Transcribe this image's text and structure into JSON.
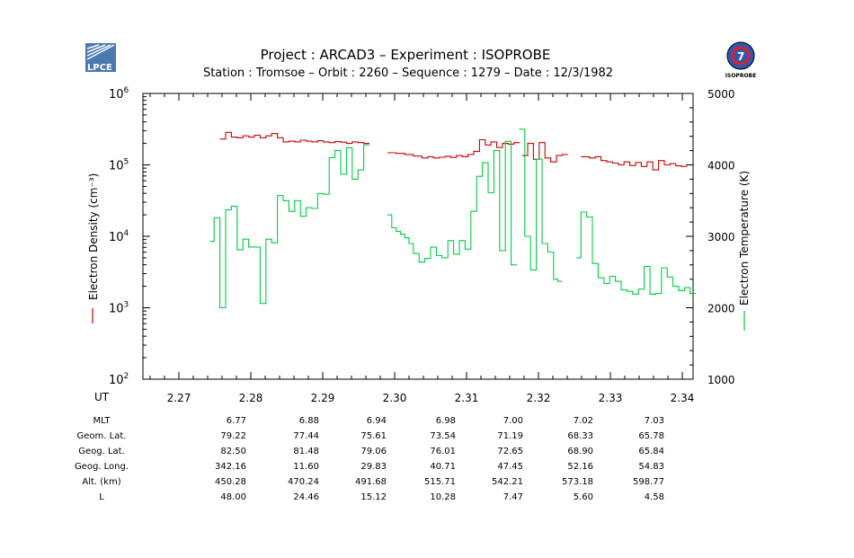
{
  "header": {
    "logo_left_text": "LPCE",
    "logo_right_text": "ISOPROBE",
    "title_line1": "Project : ARCAD3  –  Experiment : ISOPROBE",
    "title_line2": "Station : Tromsoe  –  Orbit :  2260  –  Sequence : 1279  –  Date : 12/3/1982"
  },
  "colors": {
    "density": "#cc0000",
    "temperature": "#00cc44",
    "axis": "#000000"
  },
  "chart_data": {
    "type": "line",
    "title": "Project : ARCAD3 – Experiment : ISOPROBE",
    "xlabel": "UT",
    "ylabel_left": "Electron Density (cm⁻³)",
    "ylabel_right": "Electron Temperature (K)",
    "xlim": [
      2.265,
      2.3415
    ],
    "ylim_left_log10": [
      2,
      6
    ],
    "ylim_right": [
      1000,
      5000
    ],
    "x_ticks": [
      2.27,
      2.28,
      2.29,
      2.3,
      2.31,
      2.32,
      2.33,
      2.34
    ],
    "x_tick_labels": [
      "2.27",
      "2.28",
      "2.29",
      "2.30",
      "2.31",
      "2.32",
      "2.33",
      "2.34"
    ],
    "y_left_ticks": [
      {
        "exp": 2,
        "label": "10",
        "sup": "2"
      },
      {
        "exp": 3,
        "label": "10",
        "sup": "3"
      },
      {
        "exp": 4,
        "label": "10",
        "sup": "4"
      },
      {
        "exp": 5,
        "label": "10",
        "sup": "5"
      },
      {
        "exp": 6,
        "label": "10",
        "sup": "6"
      }
    ],
    "y_right_ticks": [
      1000,
      2000,
      3000,
      4000,
      5000
    ],
    "series": [
      {
        "name": "Electron Density",
        "axis": "left",
        "segments": [
          {
            "x": [
              2.2757,
              2.2765,
              2.2773,
              2.2781,
              2.2789,
              2.2797,
              2.2805,
              2.2813,
              2.2821,
              2.2829,
              2.2837,
              2.2845,
              2.2853,
              2.2861,
              2.2869,
              2.2877,
              2.2885,
              2.2893,
              2.2901,
              2.2909,
              2.2917,
              2.2925,
              2.2933,
              2.2941,
              2.2949,
              2.2957
            ],
            "y": [
              230000,
              285000,
              245000,
              240000,
              255000,
              245000,
              260000,
              240000,
              255000,
              275000,
              240000,
              210000,
              215000,
              210000,
              222000,
              215000,
              210000,
              218000,
              210000,
              205000,
              212000,
              208000,
              200000,
              210000,
              205000,
              200000
            ]
          },
          {
            "x": [
              2.299,
              2.3002,
              2.3014,
              2.3026,
              2.3038,
              2.3046,
              2.3054,
              2.3062,
              2.307,
              2.3078,
              2.3086,
              2.3094,
              2.3102,
              2.311,
              2.3118,
              2.3126,
              2.3134,
              2.3142,
              2.315,
              2.3158,
              2.3166
            ],
            "y": [
              148000,
              145000,
              140000,
              133000,
              125000,
              130000,
              125000,
              128000,
              132000,
              127000,
              135000,
              130000,
              140000,
              155000,
              225000,
              190000,
              210000,
              175000,
              200000,
              195000,
              205000
            ]
          },
          {
            "x": [
              2.3177,
              2.3185,
              2.3193,
              2.3201,
              2.3209,
              2.3217,
              2.3225,
              2.3233
            ],
            "y": [
              135000,
              200000,
              120000,
              205000,
              125000,
              110000,
              135000,
              140000
            ]
          },
          {
            "x": [
              2.3259,
              2.3271,
              2.3279,
              2.3287,
              2.3295,
              2.3303,
              2.3311,
              2.3319,
              2.3327,
              2.3335,
              2.3343,
              2.3351,
              2.3359,
              2.3367,
              2.3375,
              2.3383,
              2.3391,
              2.3399
            ],
            "y": [
              130000,
              125000,
              130000,
              115000,
              110000,
              106000,
              100000,
              110000,
              98000,
              108000,
              95000,
              110000,
              85000,
              115000,
              100000,
              104000,
              97000,
              95000
            ]
          }
        ]
      },
      {
        "name": "Electron Temperature",
        "axis": "right",
        "segments": [
          {
            "x": [
              2.2743,
              2.2749,
              2.2757,
              2.2765,
              2.2773,
              2.2781,
              2.2789,
              2.2797,
              2.2805,
              2.2813,
              2.2821,
              2.2829,
              2.2837,
              2.2845,
              2.2853,
              2.2861,
              2.2869,
              2.2877,
              2.2885,
              2.2893,
              2.2901,
              2.2909,
              2.2917,
              2.2925,
              2.2933,
              2.2941,
              2.2949,
              2.2957
            ],
            "y": [
              2930,
              3260,
              2000,
              3370,
              3420,
              2810,
              2960,
              2850,
              2850,
              2060,
              2960,
              2910,
              3570,
              3500,
              3350,
              3500,
              3280,
              3400,
              3390,
              3600,
              3590,
              4100,
              4200,
              3870,
              4240,
              3800,
              3930,
              4280
            ]
          },
          {
            "x": [
              2.299,
              2.2996,
              2.3002,
              2.3008,
              2.3014,
              2.302,
              2.3026,
              2.3034,
              2.3042,
              2.305,
              2.3058,
              2.3066,
              2.3074,
              2.3082,
              2.309,
              2.3098,
              2.3106,
              2.3114,
              2.3122,
              2.313,
              2.3138,
              2.3146,
              2.3154,
              2.3162
            ],
            "y": [
              3300,
              3120,
              3070,
              3030,
              2980,
              2900,
              2760,
              2640,
              2690,
              2850,
              2730,
              2700,
              2940,
              2750,
              2940,
              2820,
              3350,
              3840,
              4030,
              3610,
              4200,
              2800,
              4330,
              2600
            ]
          },
          {
            "x": [
              2.3173,
              2.3181,
              2.3189,
              2.3197,
              2.3205,
              2.3213,
              2.3221,
              2.3227
            ],
            "y": [
              4500,
              3000,
              2530,
              4080,
              2900,
              2780,
              2400,
              2370
            ]
          },
          {
            "x": [
              2.3253,
              2.3259,
              2.3267,
              2.3275,
              2.3283,
              2.3291,
              2.3299,
              2.3307,
              2.3315,
              2.3323,
              2.3331,
              2.3339,
              2.3347,
              2.3355,
              2.3363,
              2.3371,
              2.3379,
              2.3387,
              2.3395,
              2.3403,
              2.3411
            ],
            "y": [
              2700,
              3340,
              3270,
              2620,
              2420,
              2340,
              2440,
              2370,
              2250,
              2230,
              2190,
              2260,
              2580,
              2190,
              2200,
              2560,
              2430,
              2300,
              2240,
              2280,
              2200
            ]
          }
        ]
      }
    ]
  },
  "table": {
    "rows": [
      {
        "label": "MLT",
        "values": [
          "6.77",
          "6.88",
          "6.94",
          "6.98",
          "7.00",
          "7.02",
          "7.03"
        ]
      },
      {
        "label": "Geom. Lat.",
        "values": [
          "79.22",
          "77.44",
          "75.61",
          "73.54",
          "71.19",
          "68.33",
          "65.78"
        ]
      },
      {
        "label": "Geog. Lat.",
        "values": [
          "82.50",
          "81.48",
          "79.06",
          "76.01",
          "72.65",
          "68.90",
          "65.84"
        ]
      },
      {
        "label": "Geog. Long.",
        "values": [
          "342.16",
          "11.60",
          "29.83",
          "40.71",
          "47.45",
          "52.16",
          "54.83"
        ]
      },
      {
        "label": "Alt. (km)",
        "values": [
          "450.28",
          "470.24",
          "491.68",
          "515.71",
          "542.21",
          "573.18",
          "598.77"
        ]
      },
      {
        "label": "L",
        "values": [
          "48.00",
          "24.46",
          "15.12",
          "10.28",
          "7.47",
          "5.60",
          "4.58"
        ]
      }
    ]
  }
}
